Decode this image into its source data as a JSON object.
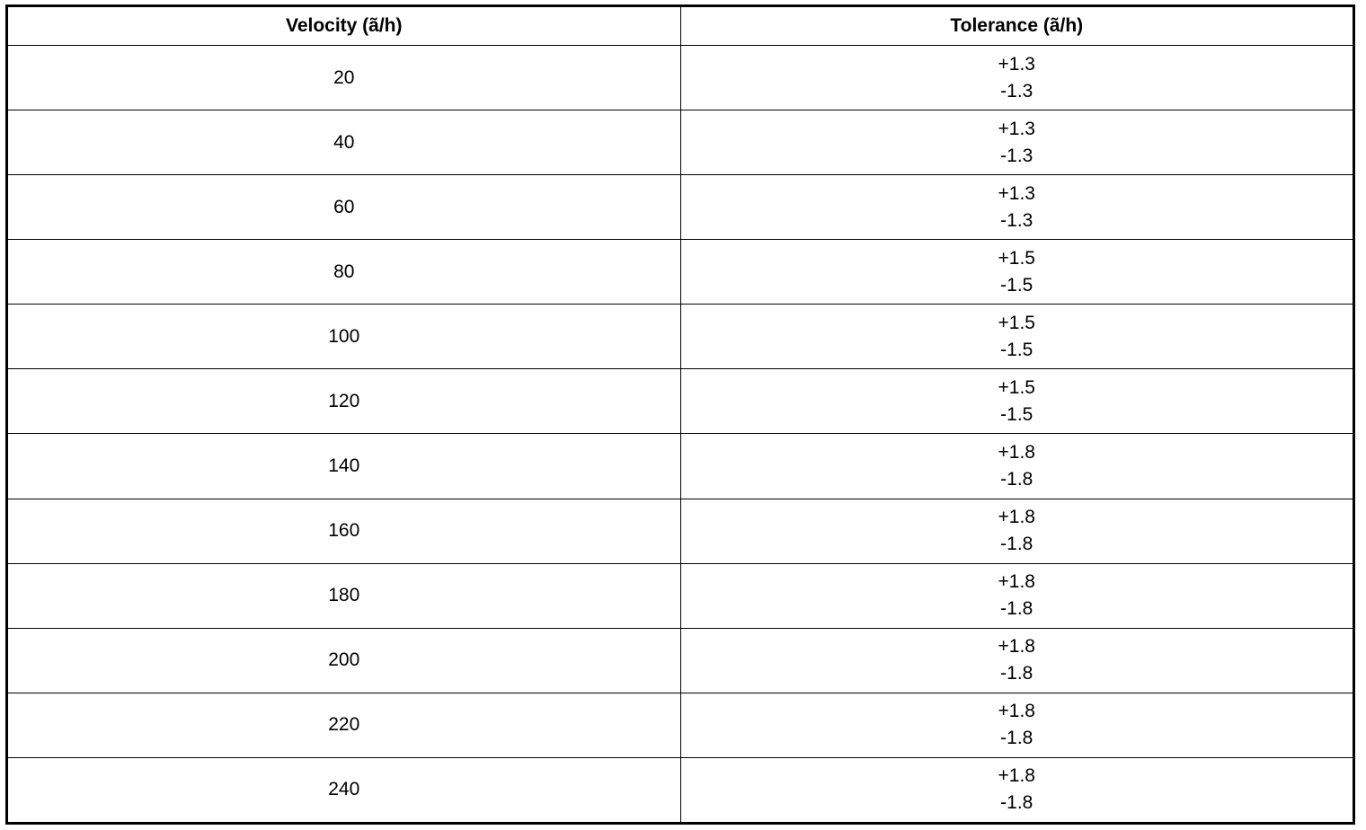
{
  "table": {
    "header": [
      "Velocity (ã/h)",
      "Tolerance (ã/h)"
    ],
    "rows": [
      [
        "20",
        "+1.3",
        "-1.3"
      ],
      [
        "40",
        "+1.3",
        "-1.3"
      ],
      [
        "60",
        "+1.3",
        "-1.3"
      ],
      [
        "80",
        "+1.5",
        "-1.5"
      ],
      [
        "100",
        "+1.5",
        "-1.5"
      ],
      [
        "120",
        "+1.5",
        "-1.5"
      ],
      [
        "140",
        "+1.8",
        "-1.8"
      ],
      [
        "160",
        "+1.8",
        "-1.8"
      ],
      [
        "180",
        "+1.8",
        "-1.8"
      ],
      [
        "200",
        "+1.8",
        "-1.8"
      ],
      [
        "220",
        "+1.8",
        "-1.8"
      ],
      [
        "240",
        "+1.8",
        "-1.8"
      ]
    ]
  }
}
